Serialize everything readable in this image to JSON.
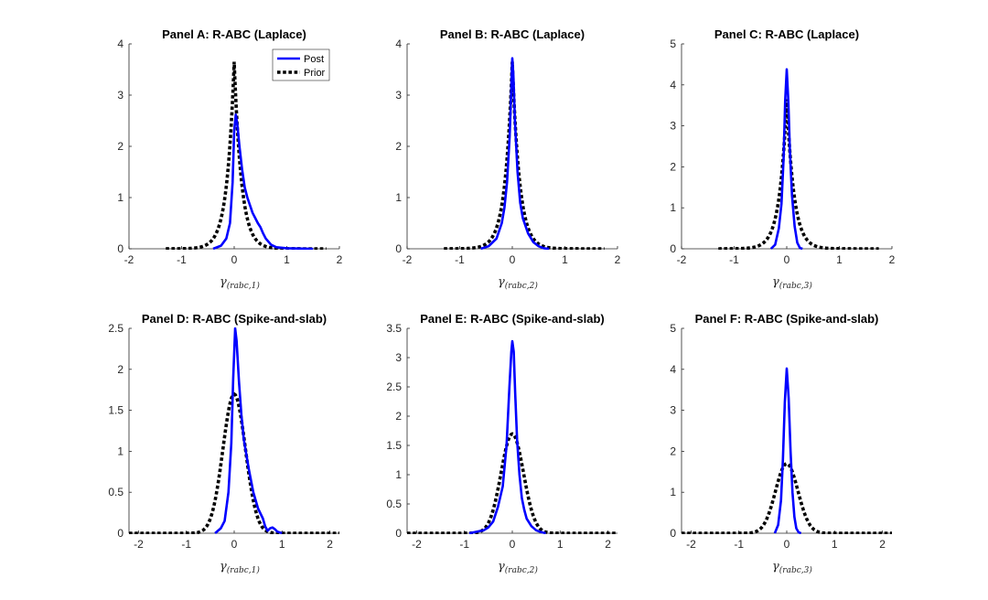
{
  "colors": {
    "post": "#0000ff",
    "prior": "#000000"
  },
  "legend": {
    "post_label": "Post",
    "prior_label": "Prior"
  },
  "chart_data": [
    {
      "id": "A",
      "type": "line",
      "title": "Panel A: R-ABC (Laplace)",
      "xlabel": "γ",
      "xlabel_sub": "(rabc,1)",
      "xlim": [
        -2,
        2
      ],
      "ylim": [
        0,
        4
      ],
      "xticks": [
        -2,
        -1,
        0,
        1,
        2
      ],
      "yticks": [
        0,
        1,
        2,
        3,
        4
      ],
      "xtick_labels": [
        "-2",
        "-1",
        "0",
        "1",
        "2"
      ],
      "ytick_labels": [
        "0",
        "1",
        "2",
        "3",
        "4"
      ],
      "legend": true,
      "series": [
        {
          "name": "Post",
          "kind": "post",
          "points": [
            [
              -0.4,
              0
            ],
            [
              -0.25,
              0.06
            ],
            [
              -0.15,
              0.2
            ],
            [
              -0.08,
              0.5
            ],
            [
              -0.03,
              1.3
            ],
            [
              0,
              2.3
            ],
            [
              0.03,
              2.62
            ],
            [
              0.06,
              2.42
            ],
            [
              0.1,
              2.0
            ],
            [
              0.15,
              1.55
            ],
            [
              0.2,
              1.2
            ],
            [
              0.25,
              1.0
            ],
            [
              0.3,
              0.85
            ],
            [
              0.35,
              0.7
            ],
            [
              0.4,
              0.6
            ],
            [
              0.45,
              0.5
            ],
            [
              0.5,
              0.42
            ],
            [
              0.55,
              0.3
            ],
            [
              0.6,
              0.2
            ],
            [
              0.7,
              0.08
            ],
            [
              0.8,
              0.03
            ],
            [
              1.0,
              0.01
            ],
            [
              1.5,
              0
            ]
          ]
        },
        {
          "name": "Prior",
          "kind": "prior",
          "laplace": {
            "b": 0.137,
            "from": -1.3,
            "to": 1.75
          }
        }
      ]
    },
    {
      "id": "B",
      "type": "line",
      "title": "Panel B: R-ABC (Laplace)",
      "xlabel": "γ",
      "xlabel_sub": "(rabc,2)",
      "xlim": [
        -2,
        2
      ],
      "ylim": [
        0,
        4
      ],
      "xticks": [
        -2,
        -1,
        0,
        1,
        2
      ],
      "yticks": [
        0,
        1,
        2,
        3,
        4
      ],
      "xtick_labels": [
        "-2",
        "-1",
        "0",
        "1",
        "2"
      ],
      "ytick_labels": [
        "0",
        "1",
        "2",
        "3",
        "4"
      ],
      "legend": false,
      "series": [
        {
          "name": "Post",
          "kind": "post",
          "points": [
            [
              -0.6,
              0
            ],
            [
              -0.45,
              0.05
            ],
            [
              -0.3,
              0.2
            ],
            [
              -0.2,
              0.5
            ],
            [
              -0.15,
              0.8
            ],
            [
              -0.1,
              1.3
            ],
            [
              -0.05,
              2.2
            ],
            [
              -0.02,
              3.1
            ],
            [
              0,
              3.72
            ],
            [
              0.02,
              3.4
            ],
            [
              0.05,
              2.5
            ],
            [
              0.1,
              1.5
            ],
            [
              0.15,
              0.9
            ],
            [
              0.2,
              0.6
            ],
            [
              0.3,
              0.3
            ],
            [
              0.4,
              0.13
            ],
            [
              0.5,
              0.05
            ],
            [
              0.6,
              0.01
            ],
            [
              0.7,
              0
            ]
          ]
        },
        {
          "name": "Prior",
          "kind": "prior",
          "laplace": {
            "b": 0.137,
            "from": -1.3,
            "to": 1.75
          }
        }
      ]
    },
    {
      "id": "C",
      "type": "line",
      "title": "Panel C: R-ABC (Laplace)",
      "xlabel": "γ",
      "xlabel_sub": "(rabc,3)",
      "xlim": [
        -2,
        2
      ],
      "ylim": [
        0,
        5
      ],
      "xticks": [
        -2,
        -1,
        0,
        1,
        2
      ],
      "yticks": [
        0,
        1,
        2,
        3,
        4,
        5
      ],
      "xtick_labels": [
        "-2",
        "-1",
        "0",
        "1",
        "2"
      ],
      "ytick_labels": [
        "0",
        "1",
        "2",
        "3",
        "4",
        "5"
      ],
      "legend": false,
      "series": [
        {
          "name": "Post",
          "kind": "post",
          "points": [
            [
              -0.3,
              0
            ],
            [
              -0.22,
              0.1
            ],
            [
              -0.15,
              0.5
            ],
            [
              -0.1,
              1.1
            ],
            [
              -0.06,
              2.2
            ],
            [
              -0.03,
              3.6
            ],
            [
              0,
              4.38
            ],
            [
              0.03,
              3.6
            ],
            [
              0.06,
              2.4
            ],
            [
              0.1,
              1.3
            ],
            [
              0.15,
              0.55
            ],
            [
              0.2,
              0.15
            ],
            [
              0.25,
              0.02
            ],
            [
              0.3,
              0
            ]
          ]
        },
        {
          "name": "Prior",
          "kind": "prior",
          "laplace": {
            "b": 0.137,
            "from": -1.3,
            "to": 1.75
          }
        }
      ]
    },
    {
      "id": "D",
      "type": "line",
      "title": "Panel D: R-ABC (Spike-and-slab)",
      "xlabel": "γ",
      "xlabel_sub": "(rabc,1)",
      "xlim": [
        -2.2,
        2.2
      ],
      "ylim": [
        0,
        2.5
      ],
      "xticks": [
        -2,
        -1,
        0,
        1,
        2
      ],
      "yticks": [
        0,
        0.5,
        1,
        1.5,
        2,
        2.5
      ],
      "xtick_labels": [
        "-2",
        "-1",
        "0",
        "1",
        "2"
      ],
      "ytick_labels": [
        "0",
        "0.5",
        "1",
        "1.5",
        "2",
        "2.5"
      ],
      "legend": false,
      "series": [
        {
          "name": "Post",
          "kind": "post",
          "points": [
            [
              -0.4,
              0
            ],
            [
              -0.28,
              0.06
            ],
            [
              -0.2,
              0.15
            ],
            [
              -0.12,
              0.5
            ],
            [
              -0.06,
              1.1
            ],
            [
              -0.02,
              1.9
            ],
            [
              0.02,
              2.5
            ],
            [
              0.05,
              2.35
            ],
            [
              0.1,
              1.85
            ],
            [
              0.15,
              1.45
            ],
            [
              0.2,
              1.15
            ],
            [
              0.3,
              0.8
            ],
            [
              0.4,
              0.5
            ],
            [
              0.5,
              0.3
            ],
            [
              0.6,
              0.18
            ],
            [
              0.65,
              0.08
            ],
            [
              0.7,
              0.03
            ],
            [
              0.75,
              0.06
            ],
            [
              0.8,
              0.07
            ],
            [
              0.85,
              0.05
            ],
            [
              0.9,
              0.02
            ],
            [
              1.0,
              0
            ]
          ]
        },
        {
          "name": "Prior",
          "kind": "prior",
          "gauss": {
            "mu": 0.0,
            "sd": 0.235,
            "from": -2.5,
            "to": 2.5
          }
        }
      ]
    },
    {
      "id": "E",
      "type": "line",
      "title": "Panel E: R-ABC (Spike-and-slab)",
      "xlabel": "γ",
      "xlabel_sub": "(rabc,2)",
      "xlim": [
        -2.2,
        2.2
      ],
      "ylim": [
        0,
        3.5
      ],
      "xticks": [
        -2,
        -1,
        0,
        1,
        2
      ],
      "yticks": [
        0,
        0.5,
        1,
        1.5,
        2,
        2.5,
        3,
        3.5
      ],
      "xtick_labels": [
        "-2",
        "-1",
        "0",
        "1",
        "2"
      ],
      "ytick_labels": [
        "0",
        "0.5",
        "1",
        "1.5",
        "2",
        "2.5",
        "3",
        "3.5"
      ],
      "legend": false,
      "series": [
        {
          "name": "Post",
          "kind": "post",
          "points": [
            [
              -0.9,
              0
            ],
            [
              -0.6,
              0.05
            ],
            [
              -0.5,
              0.1
            ],
            [
              -0.4,
              0.2
            ],
            [
              -0.3,
              0.45
            ],
            [
              -0.2,
              0.8
            ],
            [
              -0.12,
              1.5
            ],
            [
              -0.06,
              2.5
            ],
            [
              -0.02,
              3.1
            ],
            [
              0,
              3.28
            ],
            [
              0.03,
              3.1
            ],
            [
              0.06,
              2.4
            ],
            [
              0.1,
              1.6
            ],
            [
              0.15,
              1.0
            ],
            [
              0.2,
              0.6
            ],
            [
              0.25,
              0.4
            ],
            [
              0.3,
              0.25
            ],
            [
              0.4,
              0.12
            ],
            [
              0.5,
              0.05
            ],
            [
              0.6,
              0.02
            ],
            [
              0.7,
              0
            ]
          ]
        },
        {
          "name": "Prior",
          "kind": "prior",
          "gauss": {
            "mu": 0.0,
            "sd": 0.235,
            "from": -2.5,
            "to": 2.5
          }
        }
      ]
    },
    {
      "id": "F",
      "type": "line",
      "title": "Panel F: R-ABC (Spike-and-slab)",
      "xlabel": "γ",
      "xlabel_sub": "(rabc,3)",
      "xlim": [
        -2.2,
        2.2
      ],
      "ylim": [
        0,
        5
      ],
      "xticks": [
        -2,
        -1,
        0,
        1,
        2
      ],
      "yticks": [
        0,
        1,
        2,
        3,
        4,
        5
      ],
      "xtick_labels": [
        "-2",
        "-1",
        "0",
        "1",
        "2"
      ],
      "ytick_labels": [
        "0",
        "1",
        "2",
        "3",
        "4",
        "5"
      ],
      "legend": false,
      "series": [
        {
          "name": "Post",
          "kind": "post",
          "points": [
            [
              -0.25,
              0
            ],
            [
              -0.18,
              0.2
            ],
            [
              -0.12,
              0.8
            ],
            [
              -0.08,
              1.8
            ],
            [
              -0.04,
              3.2
            ],
            [
              0,
              4.02
            ],
            [
              0.04,
              3.3
            ],
            [
              0.08,
              2.0
            ],
            [
              0.12,
              1.0
            ],
            [
              0.16,
              0.4
            ],
            [
              0.2,
              0.12
            ],
            [
              0.25,
              0.02
            ],
            [
              0.3,
              0
            ]
          ]
        },
        {
          "name": "Prior",
          "kind": "prior",
          "gauss": {
            "mu": 0.0,
            "sd": 0.235,
            "from": -2.5,
            "to": 2.5
          }
        }
      ]
    }
  ]
}
